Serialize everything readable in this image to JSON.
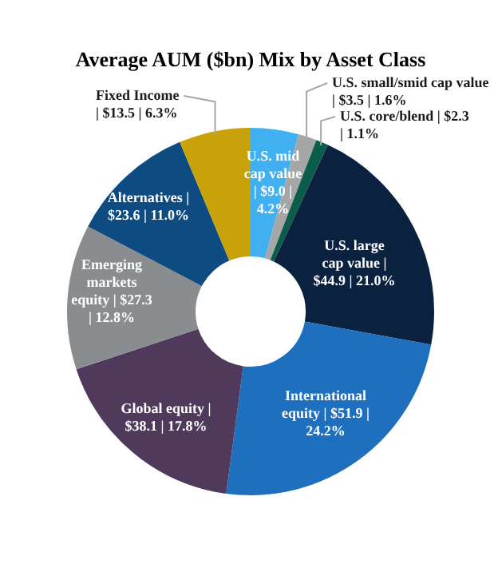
{
  "chart_data": {
    "type": "donut",
    "title": "Average AUM ($bn) Mix by Asset Class",
    "categories": [
      "U.S. mid cap value",
      "U.S. small/smid cap value",
      "U.S. core/blend",
      "U.S. large cap value",
      "International equity",
      "Global equity",
      "Emerging markets equity",
      "Alternatives",
      "Fixed Income"
    ],
    "values": [
      9.0,
      3.5,
      2.3,
      44.9,
      51.9,
      38.1,
      27.3,
      23.6,
      13.5
    ],
    "value_labels": [
      "| $9.0 | 4.2%",
      "| $3.5 | 1.6%",
      "| $2.3 | 1.1%",
      "| $44.9 | 21.0%",
      "| $51.9 | 24.2%",
      "| $38.1 | 17.8%",
      "| $27.3 | 12.8%",
      "| $23.6 | 11.0%",
      "| $13.5 | 6.3%"
    ],
    "colors": [
      "#41b0f0",
      "#a6a6a6",
      "#0b5d4b",
      "#0a2240",
      "#1f6fbf",
      "#4f3a5c",
      "#8a8d8f",
      "#0d4b80",
      "#c9a20a"
    ],
    "legend": false
  }
}
